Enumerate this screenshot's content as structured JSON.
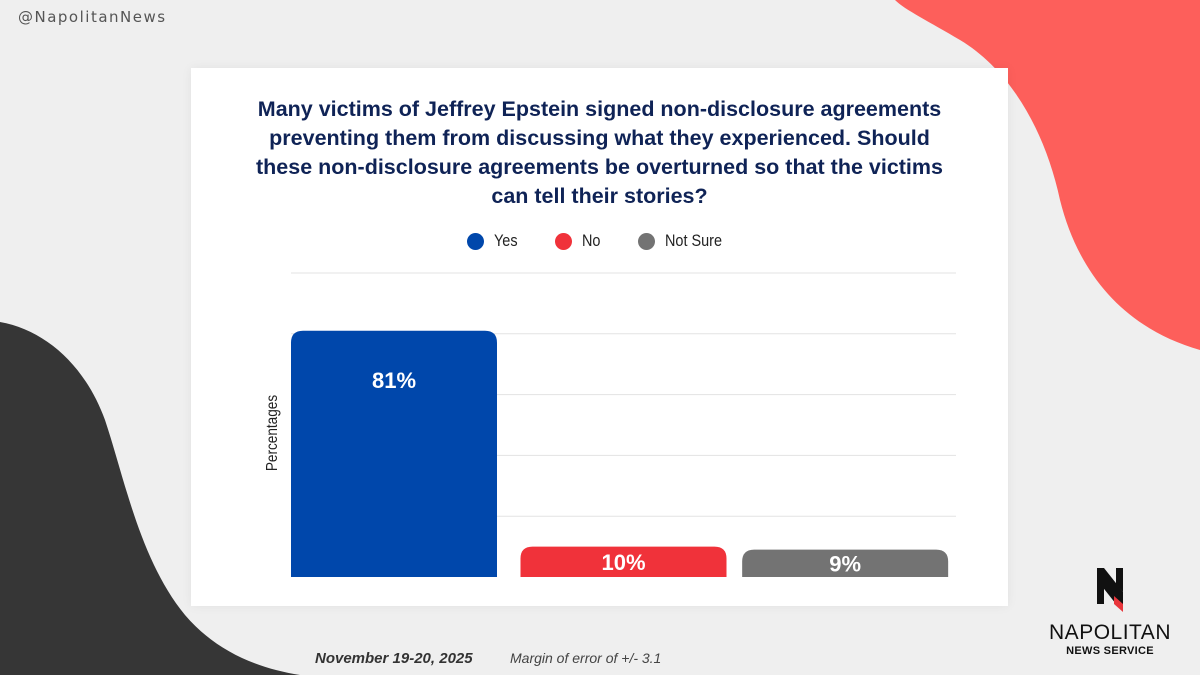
{
  "handle": "@NapolitanNews",
  "chart_data": {
    "type": "bar",
    "title": "Many victims of Jeffrey Epstein signed non-disclosure agreements preventing them from discussing what they experienced. Should these non-disclosure agreements be overturned so that the victims can tell their stories?",
    "categories": [
      "Yes",
      "No",
      "Not Sure"
    ],
    "values": [
      81,
      10,
      9
    ],
    "value_labels": [
      "81%",
      "10%",
      "9%"
    ],
    "colors": [
      "#0047ab",
      "#f0323a",
      "#737373"
    ],
    "ylabel": "Percentages",
    "xlabel": "",
    "ylim": [
      0,
      100
    ],
    "grid": true,
    "legend_position": "top"
  },
  "footer": {
    "date": "November 19-20, 2025",
    "margin": "Margin of error of +/- 3.1"
  },
  "logo": {
    "name": "NAPOLITAN",
    "subtitle": "NEWS SERVICE"
  }
}
